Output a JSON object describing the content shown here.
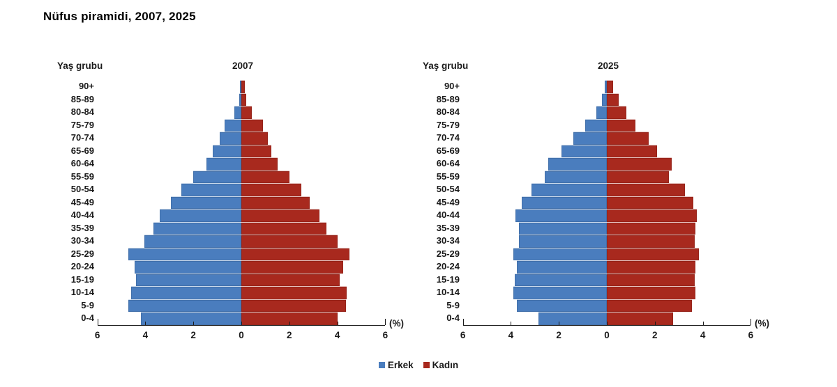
{
  "title": "Nüfus piramidi, 2007, 2025",
  "legend": [
    {
      "label": "Erkek",
      "color": "#4a7dbe"
    },
    {
      "label": "Kadın",
      "color": "#a8291e"
    }
  ],
  "chart_data": [
    {
      "type": "bar",
      "variant": "population-pyramid",
      "year_title": "2007",
      "axis_head_label": "Yaş grubu",
      "pct_label": "(%)",
      "xlim": [
        -6,
        6
      ],
      "xtick_values": [
        -6,
        -4,
        -2,
        0,
        2,
        4,
        6
      ],
      "xtick_labels": [
        "6",
        "4",
        "2",
        "0",
        "2",
        "4",
        "6"
      ],
      "age_groups": [
        "90+",
        "85-89",
        "80-84",
        "75-79",
        "70-74",
        "65-69",
        "60-64",
        "55-59",
        "50-54",
        "45-49",
        "40-44",
        "35-39",
        "30-34",
        "25-29",
        "20-24",
        "15-19",
        "10-14",
        "5-9",
        "0-4"
      ],
      "series": [
        {
          "name": "Erkek",
          "side": "left",
          "color": "#4a7dbe",
          "values": [
            0.05,
            0.1,
            0.3,
            0.7,
            0.9,
            1.2,
            1.45,
            2.0,
            2.5,
            2.95,
            3.4,
            3.65,
            4.05,
            4.7,
            4.45,
            4.4,
            4.6,
            4.7,
            4.2
          ]
        },
        {
          "name": "Kadın",
          "side": "right",
          "color": "#a8291e",
          "values": [
            0.15,
            0.2,
            0.45,
            0.9,
            1.1,
            1.25,
            1.5,
            2.0,
            2.5,
            2.85,
            3.25,
            3.55,
            4.0,
            4.5,
            4.25,
            4.1,
            4.4,
            4.35,
            4.0
          ]
        }
      ]
    },
    {
      "type": "bar",
      "variant": "population-pyramid",
      "year_title": "2025",
      "axis_head_label": "Yaş grubu",
      "pct_label": "(%)",
      "xlim": [
        -6,
        6
      ],
      "xtick_values": [
        -6,
        -4,
        -2,
        0,
        2,
        4,
        6
      ],
      "xtick_labels": [
        "6",
        "4",
        "2",
        "0",
        "2",
        "4",
        "6"
      ],
      "age_groups": [
        "90+",
        "85-89",
        "80-84",
        "75-79",
        "70-74",
        "65-69",
        "60-64",
        "55-59",
        "50-54",
        "45-49",
        "40-44",
        "35-39",
        "30-34",
        "25-29",
        "20-24",
        "15-19",
        "10-14",
        "5-9",
        "0-4"
      ],
      "series": [
        {
          "name": "Erkek",
          "side": "left",
          "color": "#4a7dbe",
          "values": [
            0.1,
            0.2,
            0.45,
            0.9,
            1.4,
            1.9,
            2.45,
            2.6,
            3.15,
            3.55,
            3.8,
            3.65,
            3.65,
            3.9,
            3.75,
            3.85,
            3.9,
            3.75,
            2.85
          ]
        },
        {
          "name": "Kadın",
          "side": "right",
          "color": "#a8291e",
          "values": [
            0.25,
            0.5,
            0.8,
            1.2,
            1.75,
            2.1,
            2.7,
            2.6,
            3.25,
            3.6,
            3.75,
            3.7,
            3.65,
            3.85,
            3.7,
            3.65,
            3.7,
            3.55,
            2.75
          ]
        }
      ]
    }
  ]
}
